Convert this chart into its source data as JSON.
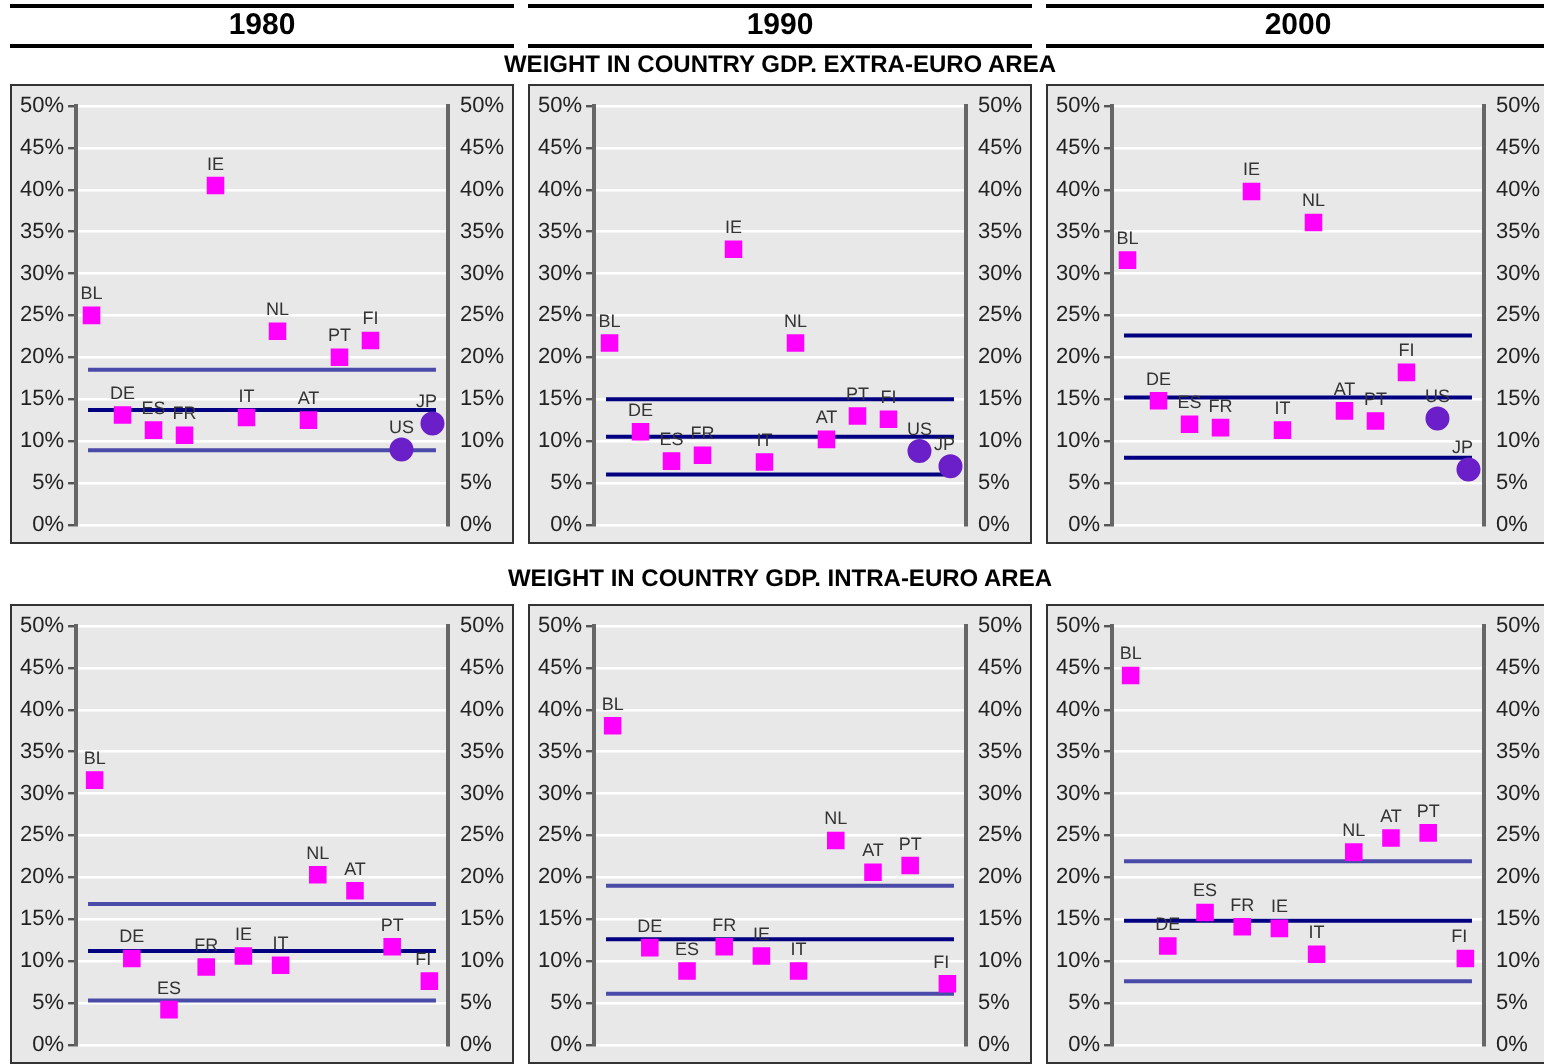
{
  "chart_data": [
    {
      "type": "scatter",
      "title": "1980",
      "categories": [
        null,
        null,
        null,
        null,
        null,
        null,
        null,
        null,
        null,
        null,
        null,
        null
      ],
      "series": [
        {
          "name": "BL",
          "color": "#ff00ff",
          "marker": "square",
          "values": [
            25.0,
            null,
            null,
            null,
            null,
            null,
            null,
            null,
            null,
            null,
            null,
            null
          ]
        },
        {
          "name": "DE",
          "color": "#ff00ff",
          "marker": "square",
          "values": [
            null,
            13.1,
            null,
            null,
            null,
            null,
            null,
            null,
            null,
            null,
            null,
            null
          ]
        },
        {
          "name": "ES",
          "color": "#ff00ff",
          "marker": "square",
          "values": [
            null,
            null,
            11.3,
            null,
            null,
            null,
            null,
            null,
            null,
            null,
            null,
            null
          ]
        },
        {
          "name": "FR",
          "color": "#ff00ff",
          "marker": "square",
          "values": [
            null,
            null,
            null,
            10.7,
            null,
            null,
            null,
            null,
            null,
            null,
            null,
            null
          ]
        },
        {
          "name": "IE",
          "color": "#ff00ff",
          "marker": "square",
          "values": [
            null,
            null,
            null,
            null,
            40.5,
            null,
            null,
            null,
            null,
            null,
            null,
            null
          ]
        },
        {
          "name": "IT",
          "color": "#ff00ff",
          "marker": "square",
          "values": [
            null,
            null,
            null,
            null,
            null,
            12.8,
            null,
            null,
            null,
            null,
            null,
            null
          ]
        },
        {
          "name": "NL",
          "color": "#ff00ff",
          "marker": "square",
          "values": [
            null,
            null,
            null,
            null,
            null,
            null,
            23.1,
            null,
            null,
            null,
            null,
            null
          ]
        },
        {
          "name": "AT",
          "color": "#ff00ff",
          "marker": "square",
          "values": [
            null,
            null,
            null,
            null,
            null,
            null,
            null,
            12.5,
            null,
            null,
            null,
            null
          ]
        },
        {
          "name": "PT",
          "color": "#ff00ff",
          "marker": "square",
          "values": [
            null,
            null,
            null,
            null,
            null,
            null,
            null,
            null,
            20.0,
            null,
            null,
            null
          ]
        },
        {
          "name": "FI",
          "color": "#ff00ff",
          "marker": "square",
          "values": [
            null,
            null,
            null,
            null,
            null,
            null,
            null,
            null,
            null,
            22.0,
            null,
            null
          ]
        },
        {
          "name": "US",
          "color": "#6a1fc8",
          "marker": "circle",
          "values": [
            null,
            null,
            null,
            null,
            null,
            null,
            null,
            null,
            null,
            null,
            9.0,
            null
          ]
        },
        {
          "name": "JP",
          "color": "#6a1fc8",
          "marker": "circle",
          "values": [
            null,
            null,
            null,
            null,
            null,
            null,
            null,
            null,
            null,
            null,
            null,
            12.1
          ]
        }
      ],
      "ref_lines": [
        {
          "axis": "y",
          "value": 18.5,
          "color": "#4a4aa8"
        },
        {
          "axis": "y",
          "value": 13.7,
          "color": "#000080"
        },
        {
          "axis": "y",
          "value": 8.9,
          "color": "#4a4aa8"
        }
      ],
      "ylim": [
        0,
        50
      ],
      "yticks": [
        {
          "value": 0,
          "label": "0%"
        },
        {
          "value": 5,
          "label": "5%"
        },
        {
          "value": 10,
          "label": "10%"
        },
        {
          "value": 15,
          "label": "15%"
        },
        {
          "value": 20,
          "label": "20%"
        },
        {
          "value": 25,
          "label": "25%"
        },
        {
          "value": 30,
          "label": "30%"
        },
        {
          "value": 35,
          "label": "35%"
        },
        {
          "value": 40,
          "label": "40%"
        },
        {
          "value": 45,
          "label": "45%"
        },
        {
          "value": 50,
          "label": "50%"
        }
      ],
      "y2lim": [
        0,
        50
      ],
      "y2ticks": [
        {
          "value": 0,
          "label": "0%"
        },
        {
          "value": 5,
          "label": "5%"
        },
        {
          "value": 10,
          "label": "10%"
        },
        {
          "value": 15,
          "label": "15%"
        },
        {
          "value": 20,
          "label": "20%"
        },
        {
          "value": 25,
          "label": "25%"
        },
        {
          "value": 30,
          "label": "30%"
        },
        {
          "value": 35,
          "label": "35%"
        },
        {
          "value": 40,
          "label": "40%"
        },
        {
          "value": 45,
          "label": "45%"
        },
        {
          "value": 50,
          "label": "50%"
        }
      ],
      "grid": "y",
      "legend": false,
      "tick_labels": "y"
    },
    {
      "type": "scatter",
      "title": "1990",
      "subtitle": "WEIGHT IN COUNTRY GDP. EXTRA-EURO AREA",
      "categories": [
        null,
        null,
        null,
        null,
        null,
        null,
        null,
        null,
        null,
        null,
        null,
        null
      ],
      "series": [
        {
          "name": "BL",
          "color": "#ff00ff",
          "marker": "square",
          "values": [
            21.7,
            null,
            null,
            null,
            null,
            null,
            null,
            null,
            null,
            null,
            null,
            null
          ]
        },
        {
          "name": "DE",
          "color": "#ff00ff",
          "marker": "square",
          "values": [
            null,
            11.1,
            null,
            null,
            null,
            null,
            null,
            null,
            null,
            null,
            null,
            null
          ]
        },
        {
          "name": "ES",
          "color": "#ff00ff",
          "marker": "square",
          "values": [
            null,
            null,
            7.6,
            null,
            null,
            null,
            null,
            null,
            null,
            null,
            null,
            null
          ]
        },
        {
          "name": "FR",
          "color": "#ff00ff",
          "marker": "square",
          "values": [
            null,
            null,
            null,
            8.3,
            null,
            null,
            null,
            null,
            null,
            null,
            null,
            null
          ]
        },
        {
          "name": "IE",
          "color": "#ff00ff",
          "marker": "square",
          "values": [
            null,
            null,
            null,
            null,
            32.9,
            null,
            null,
            null,
            null,
            null,
            null,
            null
          ]
        },
        {
          "name": "IT",
          "color": "#ff00ff",
          "marker": "square",
          "values": [
            null,
            null,
            null,
            null,
            null,
            7.5,
            null,
            null,
            null,
            null,
            null,
            null
          ]
        },
        {
          "name": "NL",
          "color": "#ff00ff",
          "marker": "square",
          "values": [
            null,
            null,
            null,
            null,
            null,
            null,
            21.7,
            null,
            null,
            null,
            null,
            null
          ]
        },
        {
          "name": "AT",
          "color": "#ff00ff",
          "marker": "square",
          "values": [
            null,
            null,
            null,
            null,
            null,
            null,
            null,
            10.2,
            null,
            null,
            null,
            null
          ]
        },
        {
          "name": "PT",
          "color": "#ff00ff",
          "marker": "square",
          "values": [
            null,
            null,
            null,
            null,
            null,
            null,
            null,
            null,
            13.0,
            null,
            null,
            null
          ]
        },
        {
          "name": "FI",
          "color": "#ff00ff",
          "marker": "square",
          "values": [
            null,
            null,
            null,
            null,
            null,
            null,
            null,
            null,
            null,
            12.6,
            null,
            null
          ]
        },
        {
          "name": "US",
          "color": "#6a1fc8",
          "marker": "circle",
          "values": [
            null,
            null,
            null,
            null,
            null,
            null,
            null,
            null,
            null,
            null,
            8.8,
            null
          ]
        },
        {
          "name": "JP",
          "color": "#6a1fc8",
          "marker": "circle",
          "values": [
            null,
            null,
            null,
            null,
            null,
            null,
            null,
            null,
            null,
            null,
            null,
            7.0
          ]
        }
      ],
      "ref_lines": [
        {
          "axis": "y",
          "value": 15.0,
          "color": "#000080"
        },
        {
          "axis": "y",
          "value": 10.5,
          "color": "#000080"
        },
        {
          "axis": "y",
          "value": 6.0,
          "color": "#000080"
        }
      ],
      "ylim": [
        0,
        50
      ],
      "yticks": [
        {
          "value": 0,
          "label": "0%"
        },
        {
          "value": 5,
          "label": "5%"
        },
        {
          "value": 10,
          "label": "10%"
        },
        {
          "value": 15,
          "label": "15%"
        },
        {
          "value": 20,
          "label": "20%"
        },
        {
          "value": 25,
          "label": "25%"
        },
        {
          "value": 30,
          "label": "30%"
        },
        {
          "value": 35,
          "label": "35%"
        },
        {
          "value": 40,
          "label": "40%"
        },
        {
          "value": 45,
          "label": "45%"
        },
        {
          "value": 50,
          "label": "50%"
        }
      ],
      "y2lim": [
        0,
        50
      ],
      "y2ticks": [
        {
          "value": 0,
          "label": "0%"
        },
        {
          "value": 5,
          "label": "5%"
        },
        {
          "value": 10,
          "label": "10%"
        },
        {
          "value": 15,
          "label": "15%"
        },
        {
          "value": 20,
          "label": "20%"
        },
        {
          "value": 25,
          "label": "25%"
        },
        {
          "value": 30,
          "label": "30%"
        },
        {
          "value": 35,
          "label": "35%"
        },
        {
          "value": 40,
          "label": "40%"
        },
        {
          "value": 45,
          "label": "45%"
        },
        {
          "value": 50,
          "label": "50%"
        }
      ],
      "grid": "y",
      "legend": false,
      "tick_labels": "y"
    },
    {
      "type": "scatter",
      "title": "2000",
      "categories": [
        null,
        null,
        null,
        null,
        null,
        null,
        null,
        null,
        null,
        null,
        null,
        null
      ],
      "series": [
        {
          "name": "BL",
          "color": "#ff00ff",
          "marker": "square",
          "values": [
            31.6,
            null,
            null,
            null,
            null,
            null,
            null,
            null,
            null,
            null,
            null,
            null
          ]
        },
        {
          "name": "DE",
          "color": "#ff00ff",
          "marker": "square",
          "values": [
            null,
            14.8,
            null,
            null,
            null,
            null,
            null,
            null,
            null,
            null,
            null,
            null
          ]
        },
        {
          "name": "ES",
          "color": "#ff00ff",
          "marker": "square",
          "values": [
            null,
            null,
            12.0,
            null,
            null,
            null,
            null,
            null,
            null,
            null,
            null,
            null
          ]
        },
        {
          "name": "FR",
          "color": "#ff00ff",
          "marker": "square",
          "values": [
            null,
            null,
            null,
            11.6,
            null,
            null,
            null,
            null,
            null,
            null,
            null,
            null
          ]
        },
        {
          "name": "IE",
          "color": "#ff00ff",
          "marker": "square",
          "values": [
            null,
            null,
            null,
            null,
            39.8,
            null,
            null,
            null,
            null,
            null,
            null,
            null
          ]
        },
        {
          "name": "IT",
          "color": "#ff00ff",
          "marker": "square",
          "values": [
            null,
            null,
            null,
            null,
            null,
            11.3,
            null,
            null,
            null,
            null,
            null,
            null
          ]
        },
        {
          "name": "NL",
          "color": "#ff00ff",
          "marker": "square",
          "values": [
            null,
            null,
            null,
            null,
            null,
            null,
            36.1,
            null,
            null,
            null,
            null,
            null
          ]
        },
        {
          "name": "AT",
          "color": "#ff00ff",
          "marker": "square",
          "values": [
            null,
            null,
            null,
            null,
            null,
            null,
            null,
            13.6,
            null,
            null,
            null,
            null
          ]
        },
        {
          "name": "PT",
          "color": "#ff00ff",
          "marker": "square",
          "values": [
            null,
            null,
            null,
            null,
            null,
            null,
            null,
            null,
            12.4,
            null,
            null,
            null
          ]
        },
        {
          "name": "FI",
          "color": "#ff00ff",
          "marker": "square",
          "values": [
            null,
            null,
            null,
            null,
            null,
            null,
            null,
            null,
            null,
            18.2,
            null,
            null
          ]
        },
        {
          "name": "US",
          "color": "#6a1fc8",
          "marker": "circle",
          "values": [
            null,
            null,
            null,
            null,
            null,
            null,
            null,
            null,
            null,
            null,
            12.7,
            null
          ]
        },
        {
          "name": "JP",
          "color": "#6a1fc8",
          "marker": "circle",
          "values": [
            null,
            null,
            null,
            null,
            null,
            null,
            null,
            null,
            null,
            null,
            null,
            6.6
          ]
        }
      ],
      "ref_lines": [
        {
          "axis": "y",
          "value": 22.6,
          "color": "#000080"
        },
        {
          "axis": "y",
          "value": 15.2,
          "color": "#000080"
        },
        {
          "axis": "y",
          "value": 8.0,
          "color": "#000080"
        }
      ],
      "ylim": [
        0,
        50
      ],
      "yticks": [
        {
          "value": 0,
          "label": "0%"
        },
        {
          "value": 5,
          "label": "5%"
        },
        {
          "value": 10,
          "label": "10%"
        },
        {
          "value": 15,
          "label": "15%"
        },
        {
          "value": 20,
          "label": "20%"
        },
        {
          "value": 25,
          "label": "25%"
        },
        {
          "value": 30,
          "label": "30%"
        },
        {
          "value": 35,
          "label": "35%"
        },
        {
          "value": 40,
          "label": "40%"
        },
        {
          "value": 45,
          "label": "45%"
        },
        {
          "value": 50,
          "label": "50%"
        }
      ],
      "y2lim": [
        0,
        50
      ],
      "y2ticks": [
        {
          "value": 0,
          "label": "0%"
        },
        {
          "value": 5,
          "label": "5%"
        },
        {
          "value": 10,
          "label": "10%"
        },
        {
          "value": 15,
          "label": "15%"
        },
        {
          "value": 20,
          "label": "20%"
        },
        {
          "value": 25,
          "label": "25%"
        },
        {
          "value": 30,
          "label": "30%"
        },
        {
          "value": 35,
          "label": "35%"
        },
        {
          "value": 40,
          "label": "40%"
        },
        {
          "value": 45,
          "label": "45%"
        },
        {
          "value": 50,
          "label": "50%"
        }
      ],
      "grid": "y",
      "legend": false,
      "tick_labels": "y"
    },
    {
      "type": "scatter",
      "categories": [
        null,
        null,
        null,
        null,
        null,
        null,
        null,
        null,
        null,
        null
      ],
      "series": [
        {
          "name": "BL",
          "color": "#ff00ff",
          "marker": "square",
          "values": [
            31.6,
            null,
            null,
            null,
            null,
            null,
            null,
            null,
            null,
            null
          ]
        },
        {
          "name": "DE",
          "color": "#ff00ff",
          "marker": "square",
          "values": [
            null,
            10.3,
            null,
            null,
            null,
            null,
            null,
            null,
            null,
            null
          ]
        },
        {
          "name": "ES",
          "color": "#ff00ff",
          "marker": "square",
          "values": [
            null,
            null,
            4.2,
            null,
            null,
            null,
            null,
            null,
            null,
            null
          ]
        },
        {
          "name": "FR",
          "color": "#ff00ff",
          "marker": "square",
          "values": [
            null,
            null,
            null,
            9.3,
            null,
            null,
            null,
            null,
            null,
            null
          ]
        },
        {
          "name": "IE",
          "color": "#ff00ff",
          "marker": "square",
          "values": [
            null,
            null,
            null,
            null,
            10.6,
            null,
            null,
            null,
            null,
            null
          ]
        },
        {
          "name": "IT",
          "color": "#ff00ff",
          "marker": "square",
          "values": [
            null,
            null,
            null,
            null,
            null,
            9.5,
            null,
            null,
            null,
            null
          ]
        },
        {
          "name": "NL",
          "color": "#ff00ff",
          "marker": "square",
          "values": [
            null,
            null,
            null,
            null,
            null,
            null,
            20.3,
            null,
            null,
            null
          ]
        },
        {
          "name": "AT",
          "color": "#ff00ff",
          "marker": "square",
          "values": [
            null,
            null,
            null,
            null,
            null,
            null,
            null,
            18.4,
            null,
            null
          ]
        },
        {
          "name": "PT",
          "color": "#ff00ff",
          "marker": "square",
          "values": [
            null,
            null,
            null,
            null,
            null,
            null,
            null,
            null,
            11.7,
            null
          ]
        },
        {
          "name": "FI",
          "color": "#ff00ff",
          "marker": "square",
          "values": [
            null,
            null,
            null,
            null,
            null,
            null,
            null,
            null,
            null,
            7.6
          ]
        }
      ],
      "ref_lines": [
        {
          "axis": "y",
          "value": 16.8,
          "color": "#4a4aa8"
        },
        {
          "axis": "y",
          "value": 11.2,
          "color": "#000080"
        },
        {
          "axis": "y",
          "value": 5.3,
          "color": "#4a4aa8"
        }
      ],
      "ylim": [
        0,
        50
      ],
      "yticks": [
        {
          "value": 0,
          "label": "0%"
        },
        {
          "value": 5,
          "label": "5%"
        },
        {
          "value": 10,
          "label": "10%"
        },
        {
          "value": 15,
          "label": "15%"
        },
        {
          "value": 20,
          "label": "20%"
        },
        {
          "value": 25,
          "label": "25%"
        },
        {
          "value": 30,
          "label": "30%"
        },
        {
          "value": 35,
          "label": "35%"
        },
        {
          "value": 40,
          "label": "40%"
        },
        {
          "value": 45,
          "label": "45%"
        },
        {
          "value": 50,
          "label": "50%"
        }
      ],
      "y2lim": [
        0,
        50
      ],
      "y2ticks": [
        {
          "value": 0,
          "label": "0%"
        },
        {
          "value": 5,
          "label": "5%"
        },
        {
          "value": 10,
          "label": "10%"
        },
        {
          "value": 15,
          "label": "15%"
        },
        {
          "value": 20,
          "label": "20%"
        },
        {
          "value": 25,
          "label": "25%"
        },
        {
          "value": 30,
          "label": "30%"
        },
        {
          "value": 35,
          "label": "35%"
        },
        {
          "value": 40,
          "label": "40%"
        },
        {
          "value": 45,
          "label": "45%"
        },
        {
          "value": 50,
          "label": "50%"
        }
      ],
      "grid": "y",
      "legend": false,
      "tick_labels": "y"
    },
    {
      "type": "scatter",
      "subtitle": "WEIGHT IN COUNTRY GDP. INTRA-EURO AREA",
      "categories": [
        null,
        null,
        null,
        null,
        null,
        null,
        null,
        null,
        null,
        null
      ],
      "series": [
        {
          "name": "BL",
          "color": "#ff00ff",
          "marker": "square",
          "values": [
            38.1,
            null,
            null,
            null,
            null,
            null,
            null,
            null,
            null,
            null
          ]
        },
        {
          "name": "DE",
          "color": "#ff00ff",
          "marker": "square",
          "values": [
            null,
            11.6,
            null,
            null,
            null,
            null,
            null,
            null,
            null,
            null
          ]
        },
        {
          "name": "ES",
          "color": "#ff00ff",
          "marker": "square",
          "values": [
            null,
            null,
            8.8,
            null,
            null,
            null,
            null,
            null,
            null,
            null
          ]
        },
        {
          "name": "FR",
          "color": "#ff00ff",
          "marker": "square",
          "values": [
            null,
            null,
            null,
            11.7,
            null,
            null,
            null,
            null,
            null,
            null
          ]
        },
        {
          "name": "IE",
          "color": "#ff00ff",
          "marker": "square",
          "values": [
            null,
            null,
            null,
            null,
            10.6,
            null,
            null,
            null,
            null,
            null
          ]
        },
        {
          "name": "IT",
          "color": "#ff00ff",
          "marker": "square",
          "values": [
            null,
            null,
            null,
            null,
            null,
            8.8,
            null,
            null,
            null,
            null
          ]
        },
        {
          "name": "NL",
          "color": "#ff00ff",
          "marker": "square",
          "values": [
            null,
            null,
            null,
            null,
            null,
            null,
            24.4,
            null,
            null,
            null
          ]
        },
        {
          "name": "AT",
          "color": "#ff00ff",
          "marker": "square",
          "values": [
            null,
            null,
            null,
            null,
            null,
            null,
            null,
            20.6,
            null,
            null
          ]
        },
        {
          "name": "PT",
          "color": "#ff00ff",
          "marker": "square",
          "values": [
            null,
            null,
            null,
            null,
            null,
            null,
            null,
            null,
            21.4,
            null
          ]
        },
        {
          "name": "FI",
          "color": "#ff00ff",
          "marker": "square",
          "values": [
            null,
            null,
            null,
            null,
            null,
            null,
            null,
            null,
            null,
            7.3
          ]
        }
      ],
      "ref_lines": [
        {
          "axis": "y",
          "value": 19.0,
          "color": "#4a4aa8"
        },
        {
          "axis": "y",
          "value": 12.6,
          "color": "#000080"
        },
        {
          "axis": "y",
          "value": 6.1,
          "color": "#4a4aa8"
        }
      ],
      "ylim": [
        0,
        50
      ],
      "yticks": [
        {
          "value": 0,
          "label": "0%"
        },
        {
          "value": 5,
          "label": "5%"
        },
        {
          "value": 10,
          "label": "10%"
        },
        {
          "value": 15,
          "label": "15%"
        },
        {
          "value": 20,
          "label": "20%"
        },
        {
          "value": 25,
          "label": "25%"
        },
        {
          "value": 30,
          "label": "30%"
        },
        {
          "value": 35,
          "label": "35%"
        },
        {
          "value": 40,
          "label": "40%"
        },
        {
          "value": 45,
          "label": "45%"
        },
        {
          "value": 50,
          "label": "50%"
        }
      ],
      "y2lim": [
        0,
        50
      ],
      "y2ticks": [
        {
          "value": 0,
          "label": "0%"
        },
        {
          "value": 5,
          "label": "5%"
        },
        {
          "value": 10,
          "label": "10%"
        },
        {
          "value": 15,
          "label": "15%"
        },
        {
          "value": 20,
          "label": "20%"
        },
        {
          "value": 25,
          "label": "25%"
        },
        {
          "value": 30,
          "label": "30%"
        },
        {
          "value": 35,
          "label": "35%"
        },
        {
          "value": 40,
          "label": "40%"
        },
        {
          "value": 45,
          "label": "45%"
        },
        {
          "value": 50,
          "label": "50%"
        }
      ],
      "grid": "y",
      "legend": false,
      "tick_labels": "y"
    },
    {
      "type": "scatter",
      "categories": [
        null,
        null,
        null,
        null,
        null,
        null,
        null,
        null,
        null,
        null
      ],
      "series": [
        {
          "name": "BL",
          "color": "#ff00ff",
          "marker": "square",
          "values": [
            44.1,
            null,
            null,
            null,
            null,
            null,
            null,
            null,
            null,
            null
          ]
        },
        {
          "name": "DE",
          "color": "#ff00ff",
          "marker": "square",
          "values": [
            null,
            11.8,
            null,
            null,
            null,
            null,
            null,
            null,
            null,
            null
          ]
        },
        {
          "name": "ES",
          "color": "#ff00ff",
          "marker": "square",
          "values": [
            null,
            null,
            15.8,
            null,
            null,
            null,
            null,
            null,
            null,
            null
          ]
        },
        {
          "name": "FR",
          "color": "#ff00ff",
          "marker": "square",
          "values": [
            null,
            null,
            null,
            14.1,
            null,
            null,
            null,
            null,
            null,
            null
          ]
        },
        {
          "name": "IE",
          "color": "#ff00ff",
          "marker": "square",
          "values": [
            null,
            null,
            null,
            null,
            13.9,
            null,
            null,
            null,
            null,
            null
          ]
        },
        {
          "name": "IT",
          "color": "#ff00ff",
          "marker": "square",
          "values": [
            null,
            null,
            null,
            null,
            null,
            10.8,
            null,
            null,
            null,
            null
          ]
        },
        {
          "name": "NL",
          "color": "#ff00ff",
          "marker": "square",
          "values": [
            null,
            null,
            null,
            null,
            null,
            null,
            23.0,
            null,
            null,
            null
          ]
        },
        {
          "name": "AT",
          "color": "#ff00ff",
          "marker": "square",
          "values": [
            null,
            null,
            null,
            null,
            null,
            null,
            null,
            24.7,
            null,
            null
          ]
        },
        {
          "name": "PT",
          "color": "#ff00ff",
          "marker": "square",
          "values": [
            null,
            null,
            null,
            null,
            null,
            null,
            null,
            null,
            25.3,
            null
          ]
        },
        {
          "name": "FI",
          "color": "#ff00ff",
          "marker": "square",
          "values": [
            null,
            null,
            null,
            null,
            null,
            null,
            null,
            null,
            null,
            10.3
          ]
        }
      ],
      "ref_lines": [
        {
          "axis": "y",
          "value": 21.9,
          "color": "#4a4aa8"
        },
        {
          "axis": "y",
          "value": 14.8,
          "color": "#000080"
        },
        {
          "axis": "y",
          "value": 7.6,
          "color": "#4a4aa8"
        }
      ],
      "ylim": [
        0,
        50
      ],
      "yticks": [
        {
          "value": 0,
          "label": "0%"
        },
        {
          "value": 5,
          "label": "5%"
        },
        {
          "value": 10,
          "label": "10%"
        },
        {
          "value": 15,
          "label": "15%"
        },
        {
          "value": 20,
          "label": "20%"
        },
        {
          "value": 25,
          "label": "25%"
        },
        {
          "value": 30,
          "label": "30%"
        },
        {
          "value": 35,
          "label": "35%"
        },
        {
          "value": 40,
          "label": "40%"
        },
        {
          "value": 45,
          "label": "45%"
        },
        {
          "value": 50,
          "label": "50%"
        }
      ],
      "y2lim": [
        0,
        50
      ],
      "y2ticks": [
        {
          "value": 0,
          "label": "0%"
        },
        {
          "value": 5,
          "label": "5%"
        },
        {
          "value": 10,
          "label": "10%"
        },
        {
          "value": 15,
          "label": "15%"
        },
        {
          "value": 20,
          "label": "20%"
        },
        {
          "value": 25,
          "label": "25%"
        },
        {
          "value": 30,
          "label": "30%"
        },
        {
          "value": 35,
          "label": "35%"
        },
        {
          "value": 40,
          "label": "40%"
        },
        {
          "value": 45,
          "label": "45%"
        },
        {
          "value": 50,
          "label": "50%"
        }
      ],
      "grid": "y",
      "legend": false,
      "tick_labels": "y"
    }
  ]
}
